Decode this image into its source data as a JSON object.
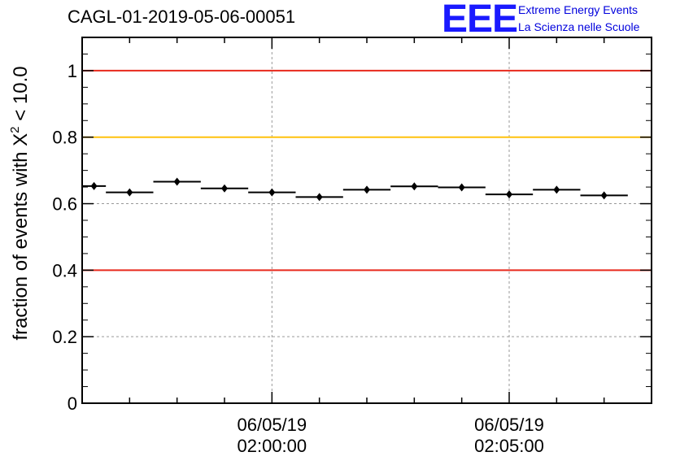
{
  "header": {
    "run_title": "CAGL-01-2019-05-06-00051",
    "logo_text": "EEE",
    "logo_line1": "Extreme Energy Events",
    "logo_line2": "La Scienza nelle Scuole"
  },
  "chart_data": {
    "type": "scatter",
    "title": "",
    "ylabel_prefix": "fraction of events with ",
    "ylabel_symbol": "X",
    "ylabel_exponent": "2",
    "ylabel_suffix": " < 10.0",
    "ylim": [
      0,
      1.1
    ],
    "y_ticks": [
      0,
      0.2,
      0.4,
      0.6,
      0.8,
      1
    ],
    "y_tick_labels": [
      "0",
      "0.2",
      "0.4",
      "0.6",
      "0.8",
      "1"
    ],
    "x_tick_labels": [
      {
        "date": "06/05/19",
        "time": "02:00:00"
      },
      {
        "date": "06/05/19",
        "time": "02:05:00"
      }
    ],
    "grid": true,
    "reference_lines": [
      {
        "y": 1.0,
        "color": "#e8291c"
      },
      {
        "y": 0.8,
        "color": "#ffc20e"
      },
      {
        "y": 0.4,
        "color": "#e8291c"
      }
    ],
    "points": [
      {
        "x_start": "01:56:00",
        "x_end": "01:56:30",
        "y": 0.653
      },
      {
        "x_start": "01:56:30",
        "x_end": "01:57:30",
        "y": 0.634
      },
      {
        "x_start": "01:57:30",
        "x_end": "01:58:30",
        "y": 0.666
      },
      {
        "x_start": "01:58:30",
        "x_end": "01:59:30",
        "y": 0.646
      },
      {
        "x_start": "01:59:30",
        "x_end": "02:00:30",
        "y": 0.634
      },
      {
        "x_start": "02:00:30",
        "x_end": "02:01:30",
        "y": 0.62
      },
      {
        "x_start": "02:01:30",
        "x_end": "02:02:30",
        "y": 0.642
      },
      {
        "x_start": "02:02:30",
        "x_end": "02:03:30",
        "y": 0.652
      },
      {
        "x_start": "02:03:30",
        "x_end": "02:04:30",
        "y": 0.649
      },
      {
        "x_start": "02:04:30",
        "x_end": "02:05:30",
        "y": 0.628
      },
      {
        "x_start": "02:05:30",
        "x_end": "02:06:30",
        "y": 0.642
      },
      {
        "x_start": "02:06:30",
        "x_end": "02:07:30",
        "y": 0.625
      }
    ]
  }
}
